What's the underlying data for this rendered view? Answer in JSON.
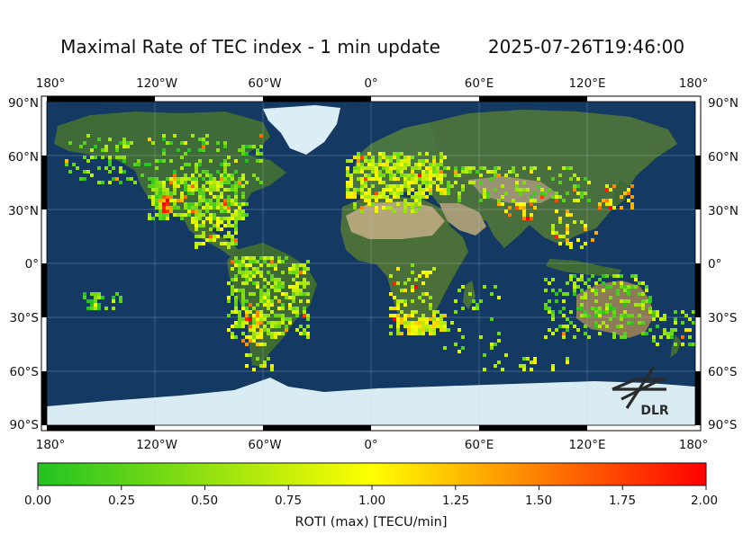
{
  "header": {
    "title": "Maximal Rate of TEC index - 1 min update",
    "timestamp": "2025-07-26T19:46:00"
  },
  "map": {
    "lon_ticks": [
      "180°",
      "120°W",
      "60°W",
      "0°",
      "60°E",
      "120°E",
      "180°"
    ],
    "lat_ticks": [
      "90°N",
      "60°N",
      "30°N",
      "0°",
      "30°S",
      "60°S",
      "90°S"
    ],
    "logo_text": "DLR",
    "colors": {
      "ocean": "#143a63",
      "land": "#3f6a3a",
      "desert": "#a99a74",
      "ice": "#d9ecf4"
    }
  },
  "colorbar": {
    "label": "ROTI (max) [TECU/min]",
    "ticks": [
      "0.00",
      "0.25",
      "0.50",
      "0.75",
      "1.00",
      "1.25",
      "1.50",
      "1.75",
      "2.00"
    ],
    "range": [
      0,
      2
    ],
    "colors": [
      "#22c322",
      "#ffff00",
      "#ff0000"
    ]
  }
}
